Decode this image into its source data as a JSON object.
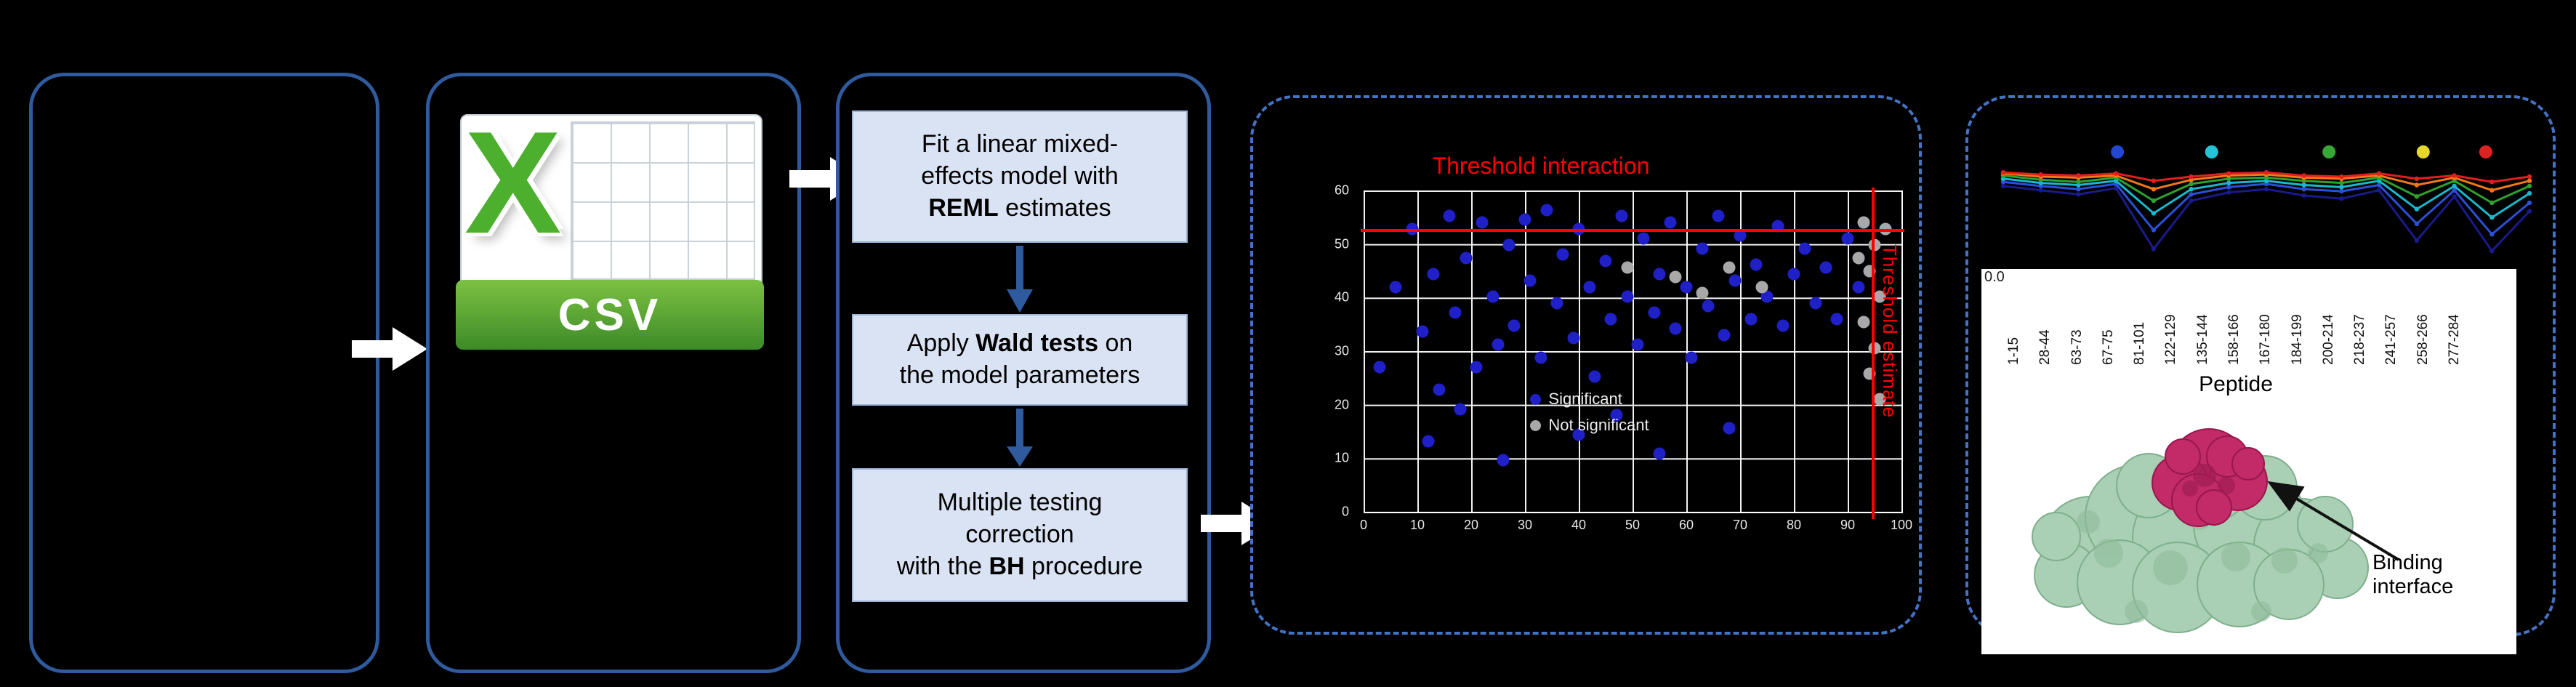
{
  "figure": {
    "background": "#000000",
    "solid_border_color": "#2F5B9E",
    "dashed_border_color": "#4472C4",
    "process_fill": "#DAE3F3"
  },
  "csv": {
    "letter": "X",
    "label": "CSV"
  },
  "pipeline": {
    "steps": [
      {
        "segments": [
          {
            "t": "Fit a linear mixed-\neffects model with\n"
          },
          {
            "t": "REML",
            "b": true
          },
          {
            "t": " estimates"
          }
        ]
      },
      {
        "segments": [
          {
            "t": "Apply "
          },
          {
            "t": "Wald tests",
            "b": true
          },
          {
            "t": " on\nthe model parameters"
          }
        ]
      },
      {
        "segments": [
          {
            "t": "Multiple testing\ncorrection\nwith the "
          },
          {
            "t": "BH",
            "b": true
          },
          {
            "t": " procedure"
          }
        ]
      }
    ]
  },
  "scatter": {
    "threshold_interaction_label": "Threshold interaction",
    "threshold_estimate_label": "Threshold estimate",
    "legend": [
      {
        "label": "Significant",
        "color": "#2020C8"
      },
      {
        "label": "Not significant",
        "color": "#A8A8A8"
      }
    ]
  },
  "uptake": {
    "y_tick": "0.0",
    "axis_label": "Peptide",
    "binding_label": "Binding\ninterface"
  },
  "chart_data": [
    {
      "type": "scatter",
      "title": "Threshold interaction",
      "xlabel": "",
      "ylabel": "",
      "x_ticks": [
        "0",
        "10",
        "20",
        "30",
        "40",
        "50",
        "60",
        "70",
        "80",
        "90",
        "100"
      ],
      "y_ticks": [
        "60",
        "50",
        "40",
        "30",
        "20",
        "10",
        "0"
      ],
      "threshold_y_pct": 12,
      "threshold_x_pct": 94.5,
      "series": [
        {
          "name": "significant-peptide",
          "color": "#2020C8",
          "points_pct": [
            [
              3,
              55
            ],
            [
              6,
              30
            ],
            [
              9,
              12
            ],
            [
              11,
              44
            ],
            [
              13,
              26
            ],
            [
              14,
              62
            ],
            [
              16,
              8
            ],
            [
              17,
              38
            ],
            [
              19,
              21
            ],
            [
              21,
              55
            ],
            [
              22,
              10
            ],
            [
              24,
              33
            ],
            [
              25,
              48
            ],
            [
              27,
              17
            ],
            [
              28,
              42
            ],
            [
              30,
              9
            ],
            [
              31,
              28
            ],
            [
              33,
              52
            ],
            [
              34,
              6
            ],
            [
              36,
              35
            ],
            [
              37,
              20
            ],
            [
              39,
              46
            ],
            [
              40,
              12
            ],
            [
              42,
              30
            ],
            [
              43,
              58
            ],
            [
              45,
              22
            ],
            [
              46,
              40
            ],
            [
              48,
              8
            ],
            [
              49,
              33
            ],
            [
              51,
              48
            ],
            [
              52,
              15
            ],
            [
              54,
              38
            ],
            [
              55,
              26
            ],
            [
              57,
              10
            ],
            [
              58,
              43
            ],
            [
              60,
              30
            ],
            [
              61,
              52
            ],
            [
              63,
              18
            ],
            [
              64,
              36
            ],
            [
              66,
              8
            ],
            [
              67,
              45
            ],
            [
              69,
              28
            ],
            [
              70,
              14
            ],
            [
              72,
              40
            ],
            [
              73,
              23
            ],
            [
              75,
              33
            ],
            [
              77,
              11
            ],
            [
              78,
              42
            ],
            [
              80,
              26
            ],
            [
              82,
              18
            ],
            [
              84,
              35
            ],
            [
              86,
              24
            ],
            [
              88,
              40
            ],
            [
              90,
              15
            ],
            [
              92,
              30
            ],
            [
              12,
              78
            ],
            [
              26,
              84
            ],
            [
              40,
              76
            ],
            [
              55,
              82
            ],
            [
              68,
              74
            ],
            [
              18,
              68
            ],
            [
              47,
              70
            ]
          ]
        },
        {
          "name": "nonsignificant-peptide",
          "color": "#A8A8A8",
          "points_pct": [
            [
              93,
              10
            ],
            [
              95,
              17
            ],
            [
              94,
              25
            ],
            [
              96,
              33
            ],
            [
              93,
              41
            ],
            [
              95,
              49
            ],
            [
              94,
              57
            ],
            [
              96,
              65
            ],
            [
              92,
              21
            ],
            [
              97,
              12
            ],
            [
              58,
              27
            ],
            [
              63,
              32
            ],
            [
              68,
              24
            ],
            [
              74,
              30
            ],
            [
              49,
              24
            ]
          ]
        }
      ]
    },
    {
      "type": "line",
      "categories": [
        "1-15",
        "28-44",
        "63-73",
        "67-75",
        "81-101",
        "122-129",
        "135-144",
        "158-166",
        "167-180",
        "184-199",
        "200-214",
        "218-237",
        "241-257",
        "258-266",
        "277-284"
      ],
      "xlabel": "Peptide",
      "ylim": [
        0.0,
        1.0
      ],
      "y_tick_labels": [
        "0.0"
      ],
      "series": [
        {
          "name": "navy",
          "color": "#1A1A8C",
          "values": [
            0.82,
            0.78,
            0.74,
            0.8,
            0.22,
            0.68,
            0.76,
            0.79,
            0.73,
            0.7,
            0.78,
            0.3,
            0.72,
            0.2,
            0.58
          ]
        },
        {
          "name": "blue",
          "color": "#2B50D8",
          "values": [
            0.86,
            0.82,
            0.79,
            0.84,
            0.4,
            0.74,
            0.81,
            0.84,
            0.79,
            0.77,
            0.83,
            0.46,
            0.78,
            0.36,
            0.66
          ]
        },
        {
          "name": "cyan",
          "color": "#19B8CC",
          "values": [
            0.89,
            0.85,
            0.83,
            0.87,
            0.56,
            0.79,
            0.85,
            0.87,
            0.83,
            0.81,
            0.87,
            0.6,
            0.82,
            0.52,
            0.75
          ]
        },
        {
          "name": "green",
          "color": "#2FA12F",
          "values": [
            0.92,
            0.88,
            0.86,
            0.9,
            0.68,
            0.84,
            0.89,
            0.9,
            0.87,
            0.85,
            0.9,
            0.72,
            0.87,
            0.66,
            0.82
          ]
        },
        {
          "name": "orange",
          "color": "#F07818",
          "values": [
            0.94,
            0.91,
            0.9,
            0.92,
            0.79,
            0.88,
            0.92,
            0.93,
            0.9,
            0.89,
            0.92,
            0.83,
            0.9,
            0.78,
            0.87
          ]
        },
        {
          "name": "red",
          "color": "#E02020",
          "values": [
            0.95,
            0.93,
            0.92,
            0.94,
            0.87,
            0.91,
            0.94,
            0.95,
            0.92,
            0.91,
            0.94,
            0.89,
            0.92,
            0.86,
            0.91
          ]
        }
      ],
      "legend_dots": [
        {
          "color": "#2447D0",
          "x_frac": 0.217
        },
        {
          "color": "#25C3D8",
          "x_frac": 0.396
        },
        {
          "color": "#37A837",
          "x_frac": 0.619
        },
        {
          "color": "#E6D82A",
          "x_frac": 0.798
        },
        {
          "color": "#DD2222",
          "x_frac": 0.917
        }
      ]
    }
  ]
}
